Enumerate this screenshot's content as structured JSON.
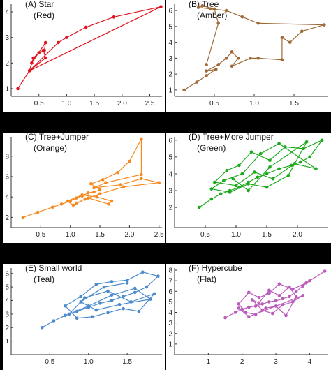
{
  "chart_data": [
    {
      "type": "line",
      "title": "(A) Star",
      "subtitle": "(Red)",
      "color": "#e0141e",
      "xticks": [
        0.5,
        1.0,
        1.5,
        2.0,
        2.5
      ],
      "yticks": [
        1,
        2,
        3,
        4
      ],
      "xlim": [
        0.0,
        2.72
      ],
      "ylim": [
        0.7,
        4.3
      ],
      "x": [
        0.12,
        0.33,
        0.4,
        0.5,
        0.6,
        0.62,
        0.37,
        0.33,
        0.85,
        1.0,
        1.35,
        1.85,
        2.7,
        0.33,
        0.62,
        0.58
      ],
      "y": [
        1.0,
        1.7,
        2.2,
        2.4,
        2.5,
        2.8,
        2.0,
        1.7,
        2.8,
        3.0,
        3.4,
        3.8,
        4.2,
        1.7,
        2.2,
        2.5
      ]
    },
    {
      "type": "line",
      "title": "(B) Tree",
      "subtitle": "(Amber)",
      "color": "#a06a38",
      "xticks": [
        0.5,
        1.0,
        1.5
      ],
      "yticks": [
        1,
        2,
        3,
        4,
        5,
        6
      ],
      "xlim": [
        0.0,
        1.93
      ],
      "ylim": [
        0.6,
        6.4
      ],
      "x": [
        0.12,
        0.28,
        0.4,
        0.52,
        0.4,
        0.55,
        0.65,
        0.72,
        0.8,
        0.72,
        0.95,
        1.05,
        1.35,
        1.35,
        1.45,
        1.6,
        1.88,
        1.05,
        0.85,
        0.65,
        0.45,
        0.3,
        0.35,
        0.5,
        0.55,
        0.4
      ],
      "y": [
        1.0,
        1.5,
        1.9,
        2.3,
        2.2,
        2.6,
        3.0,
        3.4,
        3.0,
        2.5,
        3.0,
        3.0,
        2.9,
        4.3,
        4.0,
        4.7,
        5.1,
        5.2,
        5.6,
        6.0,
        6.1,
        6.2,
        6.3,
        6.1,
        5.2,
        2.6
      ],
      "pairs": [
        [
          0.12,
          1.0
        ],
        [
          0.28,
          1.5
        ],
        [
          0.4,
          1.9
        ],
        [
          0.52,
          2.3
        ],
        [
          0.65,
          2.6
        ],
        [
          0.85,
          2.8
        ],
        [
          1.05,
          3.0
        ]
      ]
    },
    {
      "type": "line",
      "title": "(C) Tree+Jumper",
      "subtitle": "(Orange)",
      "color": "#f58a1f",
      "xticks": [
        0.5,
        1.0,
        1.5,
        2.0,
        2.5
      ],
      "yticks": [
        2,
        4,
        6,
        8
      ],
      "xlim": [
        0.0,
        2.55
      ],
      "ylim": [
        1.0,
        9.9
      ],
      "x": [
        0.2,
        0.45,
        0.7,
        0.85,
        1.0,
        1.1,
        1.2,
        1.3,
        1.4,
        1.5,
        1.35,
        1.55,
        1.8,
        2.0,
        2.2,
        2.2,
        1.6,
        1.4,
        1.85,
        2.2,
        2.5,
        1.9,
        1.5,
        1.25,
        1.05,
        0.95,
        1.2,
        1.45,
        1.7,
        1.65,
        1.3,
        1.1
      ],
      "y": [
        2.0,
        2.5,
        3.0,
        3.3,
        3.6,
        3.9,
        4.1,
        4.4,
        4.5,
        4.7,
        5.3,
        5.7,
        6.4,
        7.5,
        9.7,
        6.2,
        5.4,
        4.9,
        5.2,
        5.8,
        5.4,
        5.0,
        4.3,
        3.8,
        3.2,
        3.6,
        4.2,
        4.0,
        3.6,
        3.3,
        3.9,
        3.4
      ]
    },
    {
      "type": "line",
      "title": "(D) Tree+More Jumper",
      "subtitle": "(Green)",
      "color": "#1caa1c",
      "xticks": [
        0.5,
        1.0,
        1.5,
        2.0
      ],
      "yticks": [
        2,
        3,
        4,
        5,
        6
      ],
      "xlim": [
        0.0,
        2.5
      ],
      "ylim": [
        0.8,
        6.2
      ],
      "x": [
        0.4,
        0.6,
        0.75,
        0.9,
        1.05,
        1.2,
        1.35,
        1.5,
        1.7,
        1.9,
        2.05,
        2.2,
        2.4,
        2.1,
        1.8,
        1.55,
        1.25,
        1.05,
        0.85,
        0.65,
        1.0,
        1.3,
        1.6,
        1.95,
        2.3,
        1.7,
        1.4,
        1.1,
        0.8,
        0.6,
        0.9,
        1.2,
        1.5,
        1.85,
        2.15,
        1.55,
        1.2,
        0.95
      ],
      "y": [
        2.0,
        2.5,
        2.8,
        3.0,
        3.2,
        3.5,
        3.8,
        4.0,
        4.3,
        4.5,
        4.7,
        5.0,
        6.0,
        5.5,
        5.6,
        4.8,
        5.3,
        4.5,
        4.2,
        3.5,
        3.3,
        4.1,
        3.7,
        4.6,
        4.3,
        5.8,
        5.2,
        4.0,
        3.6,
        3.1,
        2.9,
        3.4,
        3.2,
        3.9,
        5.9,
        4.4,
        3.0,
        3.7
      ]
    },
    {
      "type": "line",
      "title": "(E) Small world",
      "subtitle": "(Teal)",
      "color": "#4a8acd",
      "xticks": [
        0.5,
        1.0,
        1.5
      ],
      "yticks": [
        1,
        2,
        3,
        4,
        5,
        6
      ],
      "xlim": [
        0.0,
        1.95
      ],
      "ylim": [
        0.0,
        6.4
      ],
      "x": [
        0.4,
        0.55,
        0.7,
        0.85,
        1.0,
        1.15,
        1.3,
        1.45,
        1.6,
        1.75,
        1.9,
        1.7,
        1.5,
        1.3,
        1.1,
        0.9,
        0.7,
        0.85,
        1.05,
        1.25,
        1.45,
        1.65,
        1.85,
        1.55,
        1.25,
        0.95,
        0.75,
        1.0,
        1.3,
        1.6,
        1.8,
        1.4,
        1.1,
        0.9,
        1.2,
        1.5
      ],
      "y": [
        2.0,
        2.5,
        2.9,
        3.2,
        3.5,
        3.8,
        4.0,
        4.3,
        4.6,
        5.0,
        5.8,
        6.1,
        5.5,
        5.4,
        5.2,
        4.3,
        3.6,
        2.7,
        2.8,
        3.1,
        3.4,
        3.2,
        4.5,
        3.9,
        4.7,
        4.2,
        3.0,
        3.6,
        4.4,
        4.9,
        4.1,
        3.7,
        3.3,
        3.9,
        5.0,
        5.3
      ]
    },
    {
      "type": "line",
      "title": "(F) Hypercube",
      "subtitle": "(Flat)",
      "color": "#bb5bbd",
      "xticks": [
        1,
        2,
        3,
        4
      ],
      "yticks": [
        1,
        2,
        3,
        4,
        5,
        6,
        7,
        8
      ],
      "xlim": [
        0.0,
        4.55
      ],
      "ylim": [
        0.0,
        8.2
      ],
      "x": [
        1.5,
        1.8,
        2.0,
        2.2,
        2.4,
        2.6,
        2.8,
        3.0,
        3.2,
        3.4,
        3.6,
        3.8,
        4.0,
        4.45,
        3.9,
        3.5,
        3.1,
        2.8,
        2.5,
        2.2,
        1.9,
        2.1,
        2.4,
        2.7,
        3.0,
        3.3,
        3.6,
        3.4,
        3.1,
        2.8,
        2.5,
        2.3,
        2.6,
        2.9,
        3.2,
        3.5,
        3.8,
        2.2,
        1.9
      ],
      "y": [
        3.5,
        4.0,
        4.3,
        4.5,
        4.6,
        4.8,
        5.0,
        5.1,
        5.3,
        5.5,
        6.0,
        6.5,
        7.0,
        7.9,
        6.8,
        6.2,
        6.7,
        5.8,
        5.4,
        5.9,
        4.8,
        4.0,
        3.8,
        4.4,
        4.6,
        3.7,
        5.5,
        6.4,
        5.6,
        6.1,
        4.9,
        5.2,
        4.2,
        3.9,
        4.7,
        5.0,
        5.6,
        3.6,
        4.4
      ]
    }
  ]
}
